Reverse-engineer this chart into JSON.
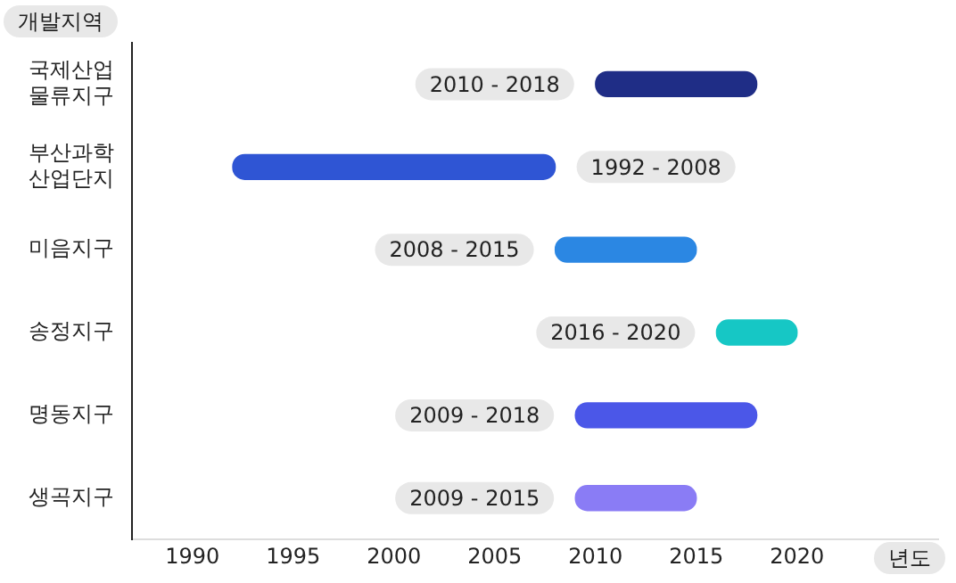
{
  "chart_data": {
    "type": "bar",
    "orientation": "horizontal",
    "ylabel": "개발지역",
    "xlabel": "년도",
    "categories": [
      "국제산업 물류지구",
      "부산과학 산업단지",
      "미음지구",
      "송정지구",
      "명동지구",
      "생곡지구"
    ],
    "base": [
      2010,
      1992,
      2008,
      2016,
      2009,
      2009
    ],
    "values": [
      8,
      16,
      7,
      4,
      9,
      6
    ],
    "annotations": [
      {
        "text": "2010 - 2018",
        "x": 2010,
        "y": "국제산업 물류지구"
      },
      {
        "text": "1992 - 2008",
        "x": 2008,
        "y": "부산과학 산업단지"
      },
      {
        "text": "2008 - 2015",
        "x": 2008,
        "y": "미음지구"
      },
      {
        "text": "2016 - 2020",
        "x": 2016,
        "y": "송정지구"
      },
      {
        "text": "2009 - 2018",
        "x": 2009,
        "y": "명동지구"
      },
      {
        "text": "2009 - 2015",
        "x": 2009,
        "y": "생곡지구"
      }
    ],
    "colors": [
      "#1f2d86",
      "#2f55d4",
      "#2b87e3",
      "#16c7c5",
      "#4b57e8",
      "#8a7cf5"
    ],
    "xlim": [
      1987,
      2027
    ],
    "xticks": [
      1990,
      1995,
      2000,
      2005,
      2010,
      2015,
      2020
    ],
    "grid": false,
    "legend": false
  }
}
